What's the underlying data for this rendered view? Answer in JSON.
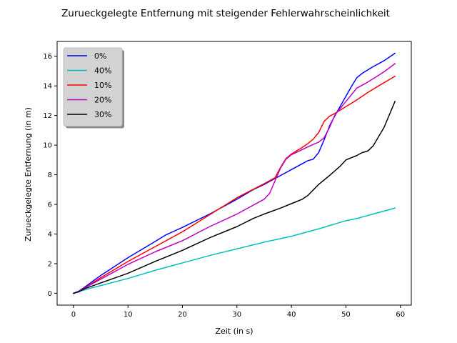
{
  "chart_data": {
    "type": "line",
    "title": "Zurueckgelegte Entfernung mit steigender Fehlerwahrscheinlichkeit",
    "xlabel": "Zeit (in s)",
    "ylabel": "Zurueckgelegte Entfernung (in m)",
    "xlim": [
      -3,
      62
    ],
    "ylim": [
      -0.8,
      17
    ],
    "xticks": [
      0,
      10,
      20,
      30,
      40,
      50,
      60
    ],
    "yticks": [
      0,
      2,
      4,
      6,
      8,
      10,
      12,
      14,
      16
    ],
    "grid": false,
    "legend_position": "top-left",
    "series": [
      {
        "name": "0%",
        "color": "#0000ff",
        "x": [
          0,
          1,
          2,
          5,
          10,
          15,
          17,
          20,
          25,
          30,
          33,
          35,
          38,
          40,
          42,
          43,
          44,
          45,
          46,
          47,
          48,
          50,
          51,
          52,
          53,
          55,
          57,
          59
        ],
        "y": [
          0,
          0.15,
          0.4,
          1.2,
          2.4,
          3.5,
          3.95,
          4.45,
          5.35,
          6.35,
          7.0,
          7.35,
          7.95,
          8.35,
          8.75,
          8.95,
          9.05,
          9.5,
          10.35,
          11.3,
          12.0,
          13.3,
          13.95,
          14.55,
          14.85,
          15.3,
          15.7,
          16.2
        ]
      },
      {
        "name": "40%",
        "color": "#00bfbf",
        "x": [
          0,
          1,
          3,
          5,
          10,
          15,
          20,
          25,
          30,
          35,
          40,
          45,
          50,
          52,
          55,
          59
        ],
        "y": [
          0,
          0.12,
          0.33,
          0.52,
          1.0,
          1.55,
          2.05,
          2.55,
          3.0,
          3.45,
          3.85,
          4.35,
          4.9,
          5.05,
          5.35,
          5.75
        ]
      },
      {
        "name": "10%",
        "color": "#ff0000",
        "x": [
          0,
          1,
          2,
          5,
          10,
          15,
          20,
          25,
          30,
          35,
          37,
          38,
          39,
          40,
          42,
          43,
          44,
          45,
          46,
          47,
          48,
          50,
          52,
          54,
          56,
          59
        ],
        "y": [
          0,
          0.12,
          0.35,
          1.05,
          2.15,
          3.15,
          4.15,
          5.3,
          6.45,
          7.4,
          7.8,
          8.5,
          9.1,
          9.4,
          9.85,
          10.1,
          10.4,
          10.85,
          11.6,
          11.95,
          12.15,
          12.6,
          13.05,
          13.55,
          14.0,
          14.65
        ]
      },
      {
        "name": "20%",
        "color": "#bf00bf",
        "x": [
          0,
          1,
          2,
          5,
          10,
          15,
          20,
          25,
          30,
          35,
          36,
          37,
          38,
          39,
          40,
          42,
          44,
          45,
          46,
          47,
          48,
          50,
          52,
          54,
          57,
          59
        ],
        "y": [
          0,
          0.12,
          0.35,
          0.95,
          1.95,
          2.8,
          3.55,
          4.5,
          5.35,
          6.35,
          6.75,
          7.6,
          8.45,
          9.05,
          9.35,
          9.7,
          10.05,
          10.2,
          10.5,
          11.2,
          12.05,
          12.95,
          13.85,
          14.25,
          14.95,
          15.5
        ]
      },
      {
        "name": "30%",
        "color": "#000000",
        "x": [
          0,
          1,
          2,
          5,
          10,
          15,
          20,
          25,
          30,
          33,
          35,
          38,
          40,
          42,
          43,
          45,
          47,
          49,
          50,
          52,
          53,
          54,
          55,
          57,
          59
        ],
        "y": [
          0,
          0.1,
          0.3,
          0.7,
          1.35,
          2.15,
          2.9,
          3.75,
          4.5,
          5.05,
          5.35,
          5.75,
          6.05,
          6.35,
          6.6,
          7.35,
          7.95,
          8.6,
          9.0,
          9.3,
          9.5,
          9.6,
          9.95,
          11.2,
          12.95
        ]
      }
    ]
  }
}
